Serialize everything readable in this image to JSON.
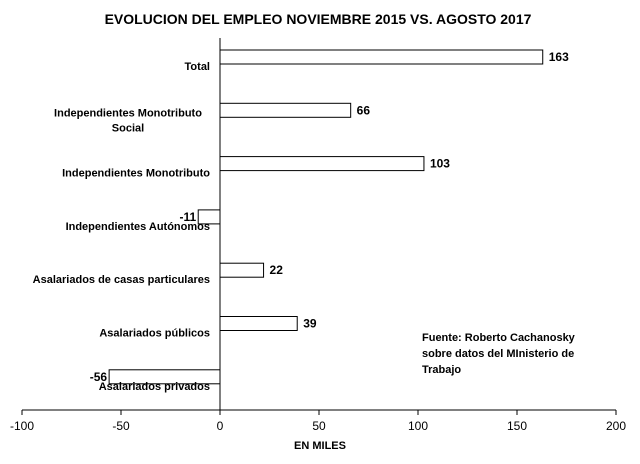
{
  "chart_data": {
    "type": "bar",
    "orientation": "horizontal",
    "title": "EVOLUCION DEL EMPLEO NOVIEMBRE  2015 VS. AGOSTO 2017",
    "xlabel": "EN MILES",
    "ylabel": "",
    "categories": [
      [
        "Total"
      ],
      [
        "Independientes Monotributo",
        "Social"
      ],
      [
        "Independientes Monotributo"
      ],
      [
        "Independientes Autónomos"
      ],
      [
        "Asalariados de casas particulares"
      ],
      [
        "Asalariados públicos"
      ],
      [
        "Asalariados privados"
      ]
    ],
    "values": [
      163,
      66,
      103,
      -11,
      22,
      39,
      -56
    ],
    "xlim": [
      -100,
      200
    ],
    "xticks": [
      "-100",
      "-50",
      "0",
      "50",
      "100",
      "150",
      "200"
    ],
    "grid": false,
    "legend": "none",
    "annotation": [
      "Fuente: Roberto Cachanosky",
      "sobre datos del MInisterio de",
      "Trabajo"
    ],
    "bar_fill": "#ffffff",
    "bar_stroke": "#000000"
  }
}
